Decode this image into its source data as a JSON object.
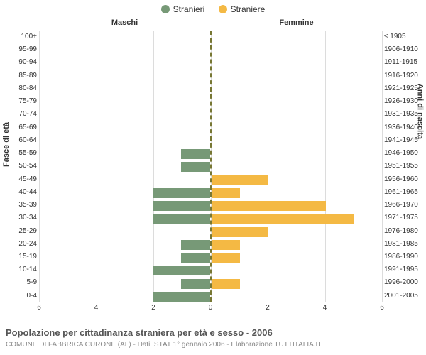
{
  "legend": {
    "male": {
      "label": "Stranieri",
      "color": "#779977"
    },
    "female": {
      "label": "Straniere",
      "color": "#f4b944"
    }
  },
  "panels": {
    "left": "Maschi",
    "right": "Femmine"
  },
  "axes": {
    "left_title": "Fasce di età",
    "right_title": "Anni di nascita",
    "x_max": 6,
    "x_ticks": [
      6,
      4,
      2,
      0,
      2,
      4,
      6
    ],
    "x_tick_positions": [
      0,
      80.5,
      161,
      241.5,
      322,
      402.5,
      483
    ]
  },
  "age_bands": [
    {
      "age": "100+",
      "birth": "≤ 1905",
      "m": 0,
      "f": 0
    },
    {
      "age": "95-99",
      "birth": "1906-1910",
      "m": 0,
      "f": 0
    },
    {
      "age": "90-94",
      "birth": "1911-1915",
      "m": 0,
      "f": 0
    },
    {
      "age": "85-89",
      "birth": "1916-1920",
      "m": 0,
      "f": 0
    },
    {
      "age": "80-84",
      "birth": "1921-1925",
      "m": 0,
      "f": 0
    },
    {
      "age": "75-79",
      "birth": "1926-1930",
      "m": 0,
      "f": 0
    },
    {
      "age": "70-74",
      "birth": "1931-1935",
      "m": 0,
      "f": 0
    },
    {
      "age": "65-69",
      "birth": "1936-1940",
      "m": 0,
      "f": 0
    },
    {
      "age": "60-64",
      "birth": "1941-1945",
      "m": 0,
      "f": 0
    },
    {
      "age": "55-59",
      "birth": "1946-1950",
      "m": 1,
      "f": 0
    },
    {
      "age": "50-54",
      "birth": "1951-1955",
      "m": 1,
      "f": 0
    },
    {
      "age": "45-49",
      "birth": "1956-1960",
      "m": 0,
      "f": 2
    },
    {
      "age": "40-44",
      "birth": "1961-1965",
      "m": 2,
      "f": 1
    },
    {
      "age": "35-39",
      "birth": "1966-1970",
      "m": 2,
      "f": 4
    },
    {
      "age": "30-34",
      "birth": "1971-1975",
      "m": 2,
      "f": 5
    },
    {
      "age": "25-29",
      "birth": "1976-1980",
      "m": 0,
      "f": 2
    },
    {
      "age": "20-24",
      "birth": "1981-1985",
      "m": 1,
      "f": 1
    },
    {
      "age": "15-19",
      "birth": "1986-1990",
      "m": 1,
      "f": 1
    },
    {
      "age": "10-14",
      "birth": "1991-1995",
      "m": 2,
      "f": 0
    },
    {
      "age": "5-9",
      "birth": "1996-2000",
      "m": 1,
      "f": 1
    },
    {
      "age": "0-4",
      "birth": "2001-2005",
      "m": 2,
      "f": 0
    }
  ],
  "caption": "Popolazione per cittadinanza straniera per età e sesso - 2006",
  "subcaption": "COMUNE DI FABBRICA CURONE (AL) - Dati ISTAT 1° gennaio 2006 - Elaborazione TUTTITALIA.IT",
  "style": {
    "grid_color": "#dcdcdc",
    "axis_color": "#999999",
    "bg": "#ffffff",
    "font": "Arial",
    "label_fontsize": 10,
    "title_fontsize": 11
  }
}
